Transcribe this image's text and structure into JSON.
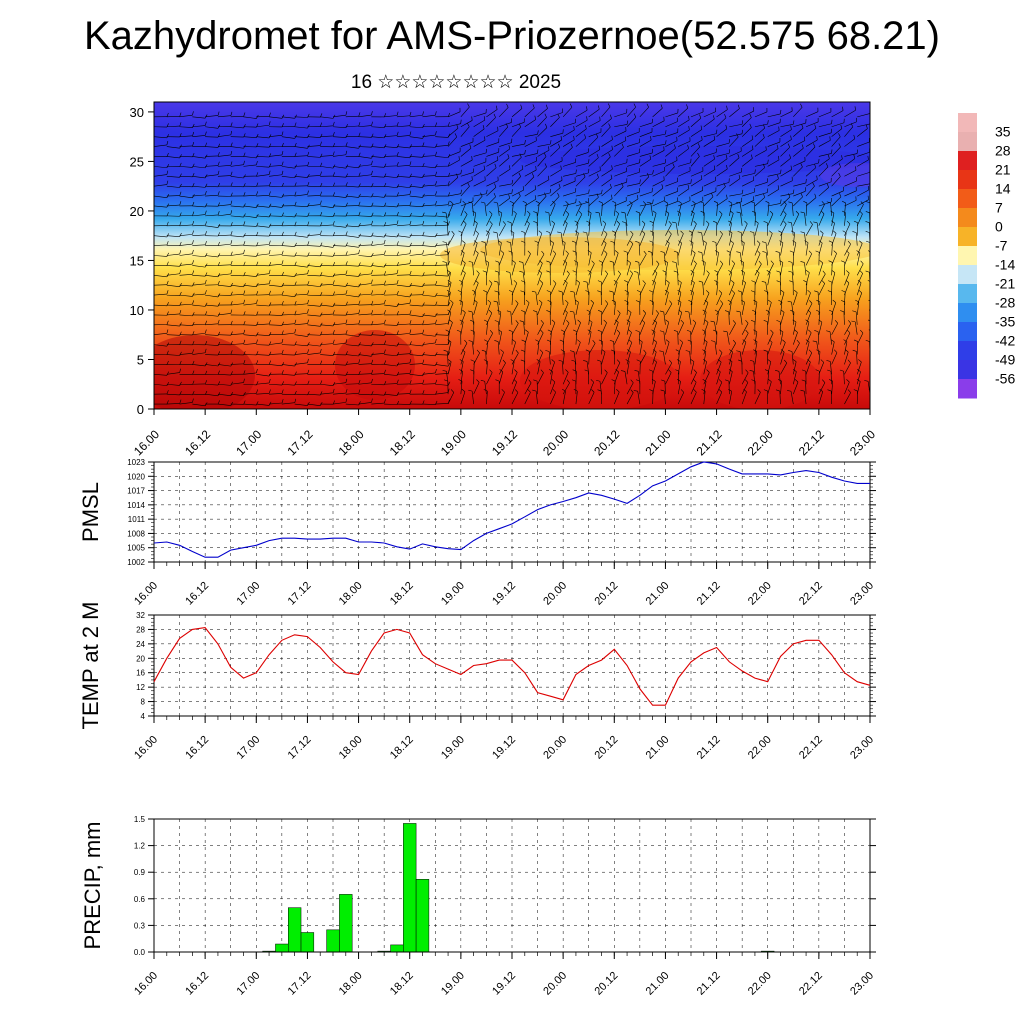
{
  "title": "Kazhydromet for AMS-Priozernoe(52.575 68.21)",
  "subtitle": "16 ☆☆☆☆☆☆☆☆ 2025",
  "colorbar": {
    "labels": [
      "35",
      "28",
      "21",
      "14",
      "7",
      "0",
      "-7",
      "-14",
      "-21",
      "-28",
      "-35",
      "-42",
      "-49",
      "-56"
    ],
    "colors": [
      "#f4b6b6",
      "#e01b1b",
      "#f05a16",
      "#f7a420",
      "#ffe24a",
      "#fff8b0",
      "#c8e8f8",
      "#2aa7ee",
      "#2a6ef2",
      "#3533e6",
      "#8a3dea"
    ]
  },
  "chart_data": [
    {
      "type": "heatmap",
      "title": "",
      "x_tick_labels": [
        "16.00",
        "16.12",
        "17.00",
        "17.12",
        "18.00",
        "18.12",
        "19.00",
        "19.12",
        "20.00",
        "20.12",
        "21.00",
        "21.12",
        "22.00",
        "22.12",
        "23.00"
      ],
      "y_tick_labels": [
        "0",
        "5",
        "10",
        "15",
        "20",
        "25",
        "30"
      ],
      "ylim": [
        0,
        31
      ],
      "overlay": "wind barbs",
      "description_levels": [
        {
          "from": 0,
          "to": 8,
          "value_range": [
            21,
            28
          ]
        },
        {
          "from": 8,
          "to": 14,
          "value_range": [
            7,
            14
          ]
        },
        {
          "from": 14,
          "to": 17,
          "value_range": [
            -7,
            0
          ]
        },
        {
          "from": 17,
          "to": 22,
          "value_range": [
            -35,
            -14
          ]
        },
        {
          "from": 22,
          "to": 31,
          "value_range": [
            -56,
            -42
          ]
        }
      ]
    },
    {
      "type": "line",
      "ylabel": "PMSL",
      "ylim": [
        1002,
        1023
      ],
      "y_ticks": [
        1002,
        1005,
        1008,
        1011,
        1014,
        1017,
        1020,
        1023
      ],
      "x_tick_labels": [
        "16.00",
        "16.12",
        "17.00",
        "17.12",
        "18.00",
        "18.12",
        "19.00",
        "19.12",
        "20.00",
        "20.12",
        "21.00",
        "21.12",
        "22.00",
        "22.12",
        "23.00"
      ],
      "color": "#0000cc",
      "x": [
        0,
        3,
        6,
        9,
        12,
        15,
        18,
        21,
        24,
        27,
        30,
        33,
        36,
        39,
        42,
        45,
        48,
        51,
        54,
        57,
        60,
        63,
        66,
        69,
        72,
        75,
        78,
        81,
        84,
        87,
        90,
        93,
        96,
        99,
        102,
        105,
        108,
        111,
        114,
        117,
        120,
        123,
        126,
        129,
        132,
        135,
        138,
        141,
        144,
        147,
        150,
        153,
        156,
        159,
        162,
        165,
        168
      ],
      "values": [
        1006,
        1006.2,
        1005.5,
        1004.2,
        1003,
        1003,
        1004.5,
        1005,
        1005.5,
        1006.5,
        1007,
        1007,
        1006.8,
        1006.8,
        1007,
        1007,
        1006.2,
        1006.2,
        1006,
        1005.2,
        1004.7,
        1005.8,
        1005.2,
        1004.8,
        1004.6,
        1006.5,
        1008,
        1009,
        1010,
        1011.5,
        1013,
        1014,
        1014.7,
        1015.5,
        1016.5,
        1016,
        1015.2,
        1014.3,
        1016,
        1018,
        1019,
        1020.5,
        1022,
        1023,
        1022.6,
        1021.5,
        1020.5,
        1020.5,
        1020.5,
        1020.3,
        1020.8,
        1021.2,
        1020.8,
        1019.8,
        1019,
        1018.5,
        1018.5
      ]
    },
    {
      "type": "line",
      "ylabel": "TEMP at 2 M",
      "ylim": [
        4,
        32
      ],
      "y_ticks": [
        4,
        8,
        12,
        16,
        20,
        24,
        28,
        32
      ],
      "x_tick_labels": [
        "16.00",
        "16.12",
        "17.00",
        "17.12",
        "18.00",
        "18.12",
        "19.00",
        "19.12",
        "20.00",
        "20.12",
        "21.00",
        "21.12",
        "22.00",
        "22.12",
        "23.00"
      ],
      "color": "#dd0000",
      "x": [
        0,
        3,
        6,
        9,
        12,
        15,
        18,
        21,
        24,
        27,
        30,
        33,
        36,
        39,
        42,
        45,
        48,
        51,
        54,
        57,
        60,
        63,
        66,
        69,
        72,
        75,
        78,
        81,
        84,
        87,
        90,
        93,
        96,
        99,
        102,
        105,
        108,
        111,
        114,
        117,
        120,
        123,
        126,
        129,
        132,
        135,
        138,
        141,
        144,
        147,
        150,
        153,
        156,
        159,
        162,
        165,
        168
      ],
      "values": [
        13.5,
        20,
        25.5,
        28,
        28.5,
        24,
        17.5,
        14.5,
        16,
        21,
        25,
        26.5,
        26,
        23,
        19,
        16,
        15.5,
        22,
        27,
        28,
        27,
        21,
        18.5,
        17,
        15.5,
        18,
        18.5,
        19.5,
        19.5,
        16,
        10.5,
        9.5,
        8.5,
        15.5,
        18,
        19.5,
        22.5,
        18,
        11.5,
        7,
        7,
        14.5,
        19,
        21.5,
        23,
        19,
        16.5,
        14.5,
        13.5,
        20.5,
        24,
        25,
        25,
        21,
        16,
        13.5,
        12.5
      ]
    },
    {
      "type": "bar",
      "ylabel": "PRECIP, mm",
      "ylim": [
        0,
        1.5
      ],
      "y_ticks": [
        "0.0",
        "0.3",
        "0.6",
        "0.9",
        "1.2",
        "1.5"
      ],
      "x_tick_labels": [
        "16.00",
        "16.12",
        "17.00",
        "17.12",
        "18.00",
        "18.12",
        "19.00",
        "19.12",
        "20.00",
        "20.12",
        "21.00",
        "21.12",
        "22.00",
        "22.12",
        "23.00"
      ],
      "color": "#00ee00",
      "x": [
        27,
        30,
        33,
        36,
        39,
        42,
        45,
        48,
        51,
        54,
        57,
        60,
        63,
        66,
        69,
        72,
        75,
        78,
        81,
        84,
        87,
        90,
        93,
        96,
        99,
        102,
        105,
        108,
        111,
        114,
        117,
        120,
        123,
        126,
        129,
        132,
        135,
        138,
        141,
        144
      ],
      "values": [
        0.01,
        0.09,
        0.5,
        0.22,
        0,
        0.25,
        0.65,
        0,
        0,
        0.01,
        0.08,
        1.45,
        0.82,
        0,
        0,
        0,
        0,
        0,
        0,
        0,
        0,
        0,
        0,
        0,
        0,
        0,
        0,
        0,
        0,
        0,
        0,
        0,
        0,
        0,
        0,
        0,
        0,
        0,
        0,
        0.01
      ]
    }
  ]
}
